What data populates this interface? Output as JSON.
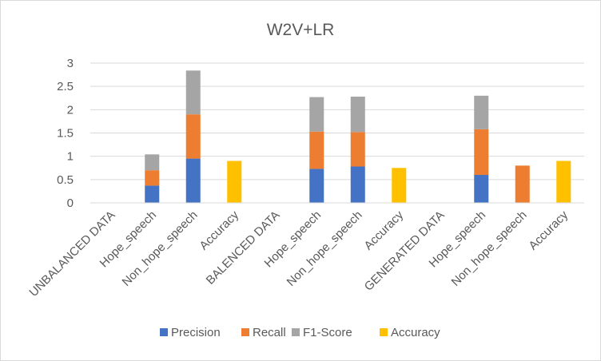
{
  "chart_data": {
    "type": "bar",
    "stacked": true,
    "title": "W2V+LR",
    "xlabel": "",
    "ylabel": "",
    "ylim": [
      0,
      3
    ],
    "yticks": [
      "0",
      "0.5",
      "1",
      "1.5",
      "2",
      "2.5",
      "3"
    ],
    "grid": "horizontal",
    "legend_position": "bottom",
    "categories": [
      "UNBALANCED DATA",
      "Hope_speech",
      "Non_hope_speech",
      "Accuracy",
      "BALENCED DATA",
      "Hope_speech",
      "Non_hope_speech",
      "Accuracy",
      "GENERATED DATA",
      "Hope_speech",
      "Non_hope_speech",
      "Accuracy"
    ],
    "series": [
      {
        "name": "Precision",
        "color": "#4472c4",
        "values": [
          0,
          0.37,
          0.95,
          0,
          0,
          0.73,
          0.78,
          0,
          0,
          0.6,
          0,
          0
        ]
      },
      {
        "name": "Recall",
        "color": "#ed7d31",
        "values": [
          0,
          0.33,
          0.95,
          0,
          0,
          0.8,
          0.74,
          0,
          0,
          0.98,
          0.8,
          0
        ]
      },
      {
        "name": "F1-Score",
        "color": "#a5a5a5",
        "values": [
          0,
          0.34,
          0.94,
          0,
          0,
          0.74,
          0.76,
          0,
          0,
          0.72,
          0,
          0
        ]
      },
      {
        "name": "Accuracy",
        "color": "#ffc000",
        "values": [
          0,
          0,
          0,
          0.9,
          0,
          0,
          0,
          0.75,
          0,
          0,
          0,
          0.9
        ]
      }
    ]
  }
}
